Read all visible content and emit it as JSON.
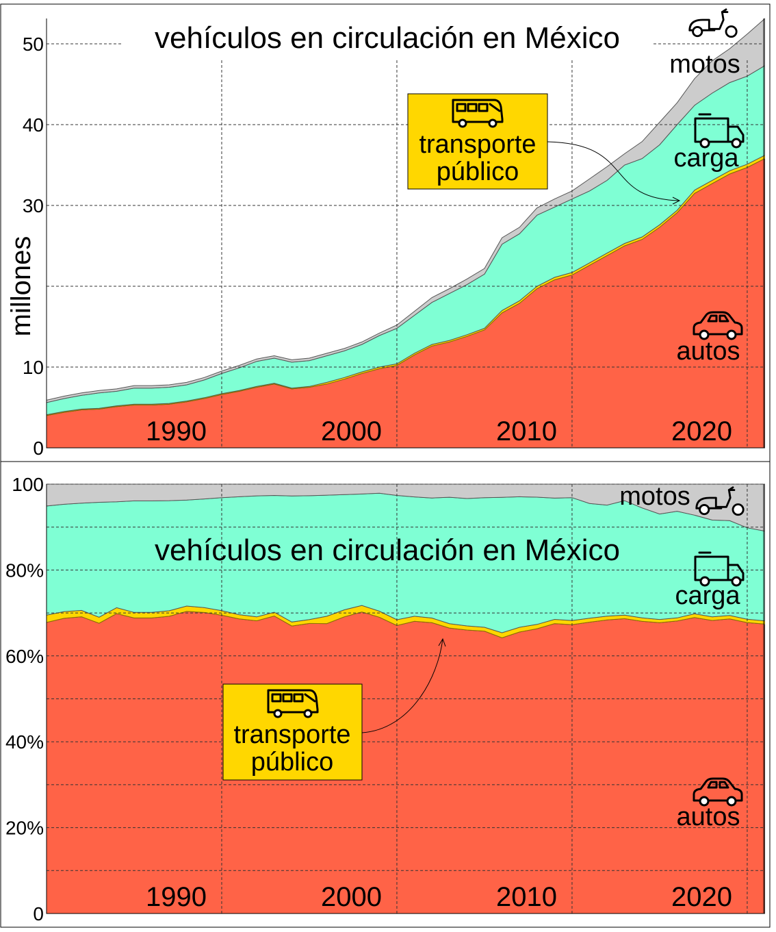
{
  "colors": {
    "autos": "#FF6347",
    "transporte_publico": "#FFD700",
    "carga": "#7FFFD4",
    "motos": "#CCCCCC"
  },
  "icons": {
    "motos": "scooter-icon",
    "carga": "truck-icon",
    "autos": "car-icon",
    "transporte_publico": "bus-icon"
  },
  "chart_data": [
    {
      "type": "area",
      "stacked": true,
      "title": "vehículos en circulación en México",
      "ylabel": "millones",
      "xlabel": "",
      "xlim": [
        1980,
        2021
      ],
      "ylim": [
        0,
        53.3
      ],
      "grid": true,
      "xtick_labels": [
        "1990",
        "2000",
        "2010",
        "2020"
      ],
      "xticks": [
        1990,
        2000,
        2010,
        2020
      ],
      "yticks": [
        0,
        10,
        30,
        40,
        50
      ],
      "ytick_labels": [
        "0",
        "10",
        "30",
        "40",
        "50"
      ],
      "series_labels": {
        "motos": "motos",
        "carga": "carga",
        "autos": "autos"
      },
      "annotation": {
        "line1": "transporte",
        "line2": "público"
      }
    },
    {
      "type": "area",
      "stacked": true,
      "normalized": true,
      "title": "vehículos en circulación en México",
      "xlim": [
        1980,
        2021
      ],
      "ylim": [
        0,
        100
      ],
      "grid": true,
      "xtick_labels": [
        "1990",
        "2000",
        "2010",
        "2020"
      ],
      "xticks": [
        1990,
        2000,
        2010,
        2020
      ],
      "yticks": [
        0,
        20,
        40,
        60,
        80,
        100
      ],
      "ytick_labels": [
        "0",
        "20%",
        "40%",
        "60%",
        "80%",
        "100"
      ],
      "series_labels": {
        "motos": "motos",
        "carga": "carga",
        "autos": "autos"
      },
      "annotation": {
        "line1": "transporte",
        "line2": "público"
      }
    }
  ],
  "data": {
    "x": [
      1980,
      1981,
      1982,
      1983,
      1984,
      1985,
      1986,
      1987,
      1988,
      1989,
      1990,
      1991,
      1992,
      1993,
      1994,
      1995,
      1996,
      1997,
      1998,
      1999,
      2000,
      2001,
      2002,
      2003,
      2004,
      2005,
      2006,
      2007,
      2008,
      2009,
      2010,
      2011,
      2012,
      2013,
      2014,
      2015,
      2016,
      2017,
      2018,
      2019,
      2020,
      2021
    ],
    "series": [
      {
        "name": "autos",
        "values": [
          4.0,
          4.4,
          4.7,
          4.8,
          5.1,
          5.3,
          5.3,
          5.4,
          5.7,
          6.1,
          6.6,
          7.0,
          7.5,
          7.9,
          7.3,
          7.5,
          7.9,
          8.5,
          9.2,
          9.8,
          10.2,
          11.5,
          12.6,
          13.1,
          13.8,
          14.6,
          16.7,
          17.9,
          19.7,
          20.8,
          21.4,
          22.6,
          23.8,
          25.0,
          25.8,
          27.3,
          29.1,
          31.5,
          32.7,
          33.9,
          34.7,
          35.8
        ]
      },
      {
        "name": "transporte público",
        "values": [
          0.1,
          0.1,
          0.1,
          0.1,
          0.1,
          0.1,
          0.1,
          0.1,
          0.1,
          0.1,
          0.1,
          0.1,
          0.1,
          0.1,
          0.1,
          0.1,
          0.2,
          0.2,
          0.2,
          0.2,
          0.2,
          0.2,
          0.2,
          0.2,
          0.2,
          0.2,
          0.3,
          0.3,
          0.3,
          0.3,
          0.3,
          0.3,
          0.3,
          0.3,
          0.3,
          0.3,
          0.3,
          0.4,
          0.4,
          0.4,
          0.4,
          0.4
        ]
      },
      {
        "name": "carga",
        "values": [
          1.5,
          1.6,
          1.7,
          1.9,
          1.8,
          2.0,
          2.0,
          2.0,
          2.0,
          2.2,
          2.5,
          2.8,
          3.1,
          3.1,
          3.2,
          3.2,
          3.3,
          3.3,
          3.4,
          3.9,
          4.4,
          4.7,
          5.2,
          5.8,
          6.2,
          6.7,
          8.2,
          8.3,
          8.8,
          8.7,
          9.1,
          8.9,
          9.0,
          9.7,
          9.7,
          9.9,
          10.6,
          10.5,
          10.8,
          10.9,
          10.9,
          11.1
        ]
      },
      {
        "name": "motos",
        "values": [
          0.3,
          0.3,
          0.3,
          0.3,
          0.3,
          0.3,
          0.3,
          0.3,
          0.3,
          0.3,
          0.3,
          0.3,
          0.3,
          0.3,
          0.3,
          0.3,
          0.3,
          0.3,
          0.3,
          0.3,
          0.4,
          0.5,
          0.6,
          0.6,
          0.7,
          0.7,
          0.8,
          0.8,
          0.9,
          1.0,
          1.0,
          1.5,
          1.7,
          1.4,
          2.1,
          2.8,
          2.7,
          3.3,
          4.0,
          4.2,
          5.2,
          5.8
        ]
      }
    ]
  }
}
